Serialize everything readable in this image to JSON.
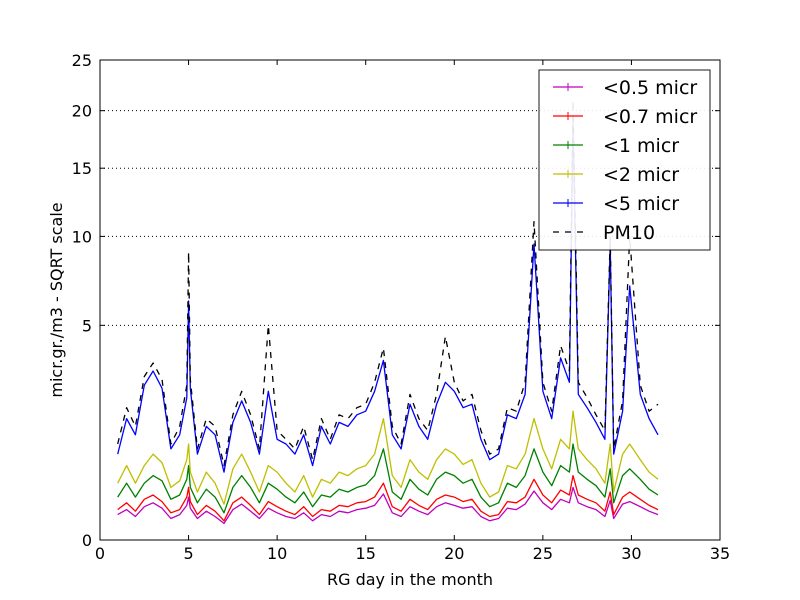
{
  "chart_data": {
    "type": "line",
    "title": "",
    "xlabel": "RG day in the month",
    "ylabel": "micr.gr./m3 - SQRT scale",
    "xlim": [
      0,
      35
    ],
    "ylim": [
      0,
      25
    ],
    "y_scale": "sqrt",
    "x_ticks": [
      0,
      5,
      10,
      15,
      20,
      25,
      30,
      35
    ],
    "x_tick_labels": [
      "0",
      "5",
      "10",
      "15",
      "20",
      "25",
      "30",
      "35"
    ],
    "y_ticks": [
      0,
      5,
      10,
      15,
      20,
      25
    ],
    "y_tick_labels": [
      "0",
      "5",
      "10",
      "15",
      "20",
      "25"
    ],
    "grid": {
      "horizontal": true,
      "vertical": false,
      "style": "dotted"
    },
    "legend_position": "top-right",
    "x": [
      1.0,
      1.5,
      2.0,
      2.5,
      3.0,
      3.5,
      4.0,
      4.5,
      4.9,
      5.0,
      5.1,
      5.5,
      6.0,
      6.5,
      7.0,
      7.5,
      8.0,
      8.5,
      9.0,
      9.5,
      10.0,
      10.5,
      11.0,
      11.5,
      12.0,
      12.5,
      13.0,
      13.5,
      14.0,
      14.5,
      15.0,
      15.5,
      16.0,
      16.5,
      17.0,
      17.5,
      18.0,
      18.5,
      19.0,
      19.5,
      20.0,
      20.5,
      21.0,
      21.5,
      22.0,
      22.5,
      23.0,
      23.5,
      24.0,
      24.5,
      25.0,
      25.5,
      26.0,
      26.5,
      26.7,
      27.0,
      27.5,
      28.0,
      28.5,
      28.8,
      29.0,
      29.5,
      29.9,
      30.5,
      31.0,
      31.5
    ],
    "series": [
      {
        "name": "<0.5 micr",
        "color": "#bf00bf",
        "dash": "solid",
        "values": [
          0.07,
          0.1,
          0.06,
          0.12,
          0.15,
          0.11,
          0.05,
          0.07,
          0.13,
          0.2,
          0.11,
          0.05,
          0.09,
          0.06,
          0.03,
          0.1,
          0.14,
          0.09,
          0.05,
          0.11,
          0.08,
          0.06,
          0.05,
          0.08,
          0.04,
          0.07,
          0.06,
          0.09,
          0.08,
          0.1,
          0.11,
          0.13,
          0.23,
          0.08,
          0.06,
          0.12,
          0.09,
          0.07,
          0.12,
          0.15,
          0.13,
          0.11,
          0.12,
          0.06,
          0.04,
          0.05,
          0.11,
          0.1,
          0.14,
          0.26,
          0.15,
          0.1,
          0.18,
          0.15,
          0.3,
          0.15,
          0.12,
          0.1,
          0.06,
          0.17,
          0.05,
          0.14,
          0.16,
          0.12,
          0.09,
          0.07
        ]
      },
      {
        "name": "<0.7 micr",
        "color": "#ff0000",
        "dash": "solid",
        "values": [
          0.1,
          0.15,
          0.09,
          0.18,
          0.22,
          0.16,
          0.08,
          0.1,
          0.2,
          0.3,
          0.16,
          0.07,
          0.13,
          0.09,
          0.04,
          0.15,
          0.2,
          0.13,
          0.07,
          0.16,
          0.12,
          0.09,
          0.07,
          0.12,
          0.06,
          0.1,
          0.09,
          0.13,
          0.12,
          0.15,
          0.16,
          0.2,
          0.35,
          0.12,
          0.09,
          0.18,
          0.13,
          0.1,
          0.18,
          0.22,
          0.2,
          0.16,
          0.18,
          0.09,
          0.06,
          0.07,
          0.16,
          0.15,
          0.2,
          0.4,
          0.22,
          0.15,
          0.27,
          0.22,
          0.45,
          0.22,
          0.18,
          0.15,
          0.09,
          0.25,
          0.07,
          0.2,
          0.25,
          0.18,
          0.13,
          0.1
        ]
      },
      {
        "name": "<1 micr",
        "color": "#008000",
        "dash": "solid",
        "values": [
          0.2,
          0.35,
          0.2,
          0.35,
          0.45,
          0.38,
          0.18,
          0.22,
          0.4,
          0.6,
          0.3,
          0.15,
          0.28,
          0.2,
          0.08,
          0.3,
          0.45,
          0.3,
          0.15,
          0.35,
          0.28,
          0.2,
          0.15,
          0.25,
          0.12,
          0.22,
          0.2,
          0.28,
          0.25,
          0.3,
          0.33,
          0.45,
          0.9,
          0.25,
          0.18,
          0.4,
          0.28,
          0.22,
          0.4,
          0.5,
          0.45,
          0.35,
          0.4,
          0.2,
          0.12,
          0.15,
          0.35,
          0.3,
          0.45,
          0.9,
          0.5,
          0.32,
          0.6,
          0.5,
          1.0,
          0.5,
          0.4,
          0.32,
          0.2,
          0.55,
          0.15,
          0.45,
          0.55,
          0.4,
          0.28,
          0.22
        ]
      },
      {
        "name": "<2 micr",
        "color": "#bfbf00",
        "dash": "solid",
        "values": [
          0.35,
          0.6,
          0.35,
          0.6,
          0.8,
          0.65,
          0.3,
          0.38,
          0.7,
          1.0,
          0.5,
          0.25,
          0.5,
          0.35,
          0.14,
          0.55,
          0.8,
          0.5,
          0.25,
          0.6,
          0.5,
          0.35,
          0.25,
          0.45,
          0.2,
          0.4,
          0.35,
          0.5,
          0.45,
          0.55,
          0.6,
          0.8,
          1.6,
          0.45,
          0.3,
          0.7,
          0.5,
          0.4,
          0.7,
          0.9,
          0.8,
          0.62,
          0.7,
          0.35,
          0.2,
          0.25,
          0.6,
          0.55,
          0.8,
          1.6,
          0.9,
          0.55,
          1.1,
          0.9,
          1.8,
          0.9,
          0.7,
          0.55,
          0.35,
          1.0,
          0.25,
          0.8,
          1.0,
          0.7,
          0.5,
          0.4
        ]
      },
      {
        "name": "<5 micr",
        "color": "#0000ff",
        "dash": "solid",
        "values": [
          0.8,
          1.6,
          1.2,
          2.6,
          3.1,
          2.5,
          0.9,
          1.2,
          2.2,
          6.2,
          2.5,
          0.8,
          1.4,
          1.2,
          0.5,
          1.5,
          2.1,
          1.5,
          0.8,
          2.4,
          1.1,
          1.0,
          0.8,
          1.2,
          0.6,
          1.4,
          1.0,
          1.5,
          1.4,
          1.7,
          1.8,
          2.4,
          3.5,
          1.2,
          0.9,
          2.0,
          1.4,
          1.1,
          2.0,
          2.7,
          2.4,
          1.9,
          2.0,
          1.1,
          0.7,
          0.8,
          1.7,
          1.6,
          2.3,
          9.5,
          2.4,
          1.6,
          3.6,
          2.7,
          19.0,
          2.3,
          1.9,
          1.5,
          1.1,
          9.5,
          0.8,
          1.8,
          7.0,
          2.3,
          1.6,
          1.2
        ]
      },
      {
        "name": "PM10",
        "color": "#000000",
        "dash": "dashed",
        "values": [
          1.0,
          1.9,
          1.4,
          2.9,
          3.4,
          2.8,
          1.0,
          1.4,
          2.6,
          9.0,
          2.8,
          0.9,
          1.6,
          1.4,
          0.6,
          1.7,
          2.4,
          1.7,
          0.9,
          5.0,
          1.3,
          1.1,
          0.9,
          1.4,
          0.7,
          1.6,
          1.1,
          1.7,
          1.6,
          1.9,
          2.0,
          2.7,
          4.0,
          1.4,
          1.0,
          2.3,
          1.6,
          1.3,
          2.3,
          4.5,
          2.7,
          2.1,
          2.3,
          1.3,
          0.8,
          0.9,
          1.9,
          1.8,
          2.7,
          11.0,
          2.7,
          1.8,
          4.1,
          3.1,
          21.0,
          2.7,
          2.2,
          1.7,
          1.3,
          10.0,
          0.9,
          2.1,
          10.0,
          2.6,
          1.8,
          2.0
        ]
      }
    ]
  }
}
